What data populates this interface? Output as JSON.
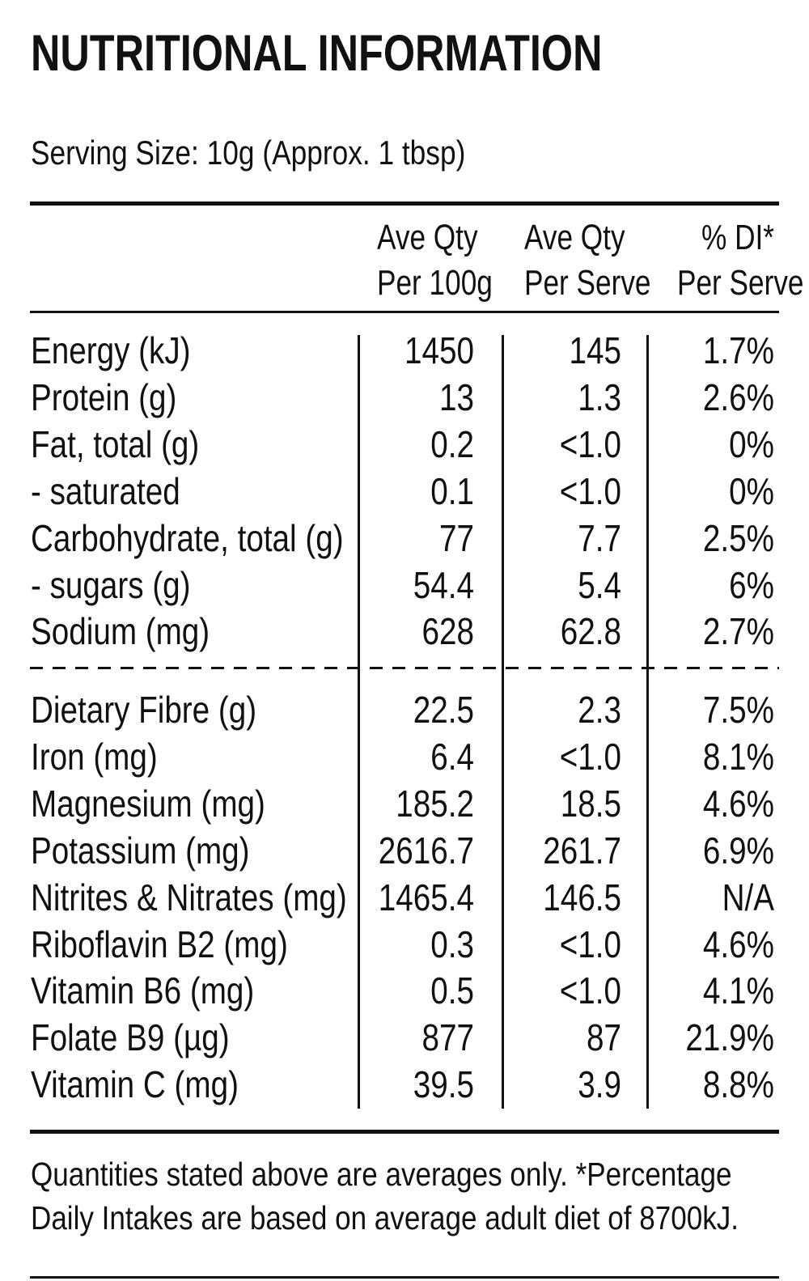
{
  "title": "NUTRITIONAL INFORMATION",
  "serving": "Serving Size: 10g (Approx. 1 tbsp)",
  "headers": [
    {
      "line1": "Ave Qty",
      "line2": "Per 100g"
    },
    {
      "line1": "Ave Qty",
      "line2": "Per Serve"
    },
    {
      "line1": "% DI*",
      "line2": "Per Serve"
    }
  ],
  "rows_main": [
    {
      "name": "Energy (kJ)",
      "per100": "1450",
      "perServe": "145",
      "di": "1.7%"
    },
    {
      "name": "Protein (g)",
      "per100": "13",
      "perServe": "1.3",
      "di": "2.6%"
    },
    {
      "name": "Fat, total (g)",
      "per100": "0.2",
      "perServe": "<1.0",
      "di": "0%"
    },
    {
      "name": "- saturated",
      "per100": "0.1",
      "perServe": "<1.0",
      "di": "0%"
    },
    {
      "name": "Carbohydrate, total (g)",
      "per100": "77",
      "perServe": "7.7",
      "di": "2.5%"
    },
    {
      "name": "- sugars (g)",
      "per100": "54.4",
      "perServe": "5.4",
      "di": "6%"
    },
    {
      "name": "Sodium (mg)",
      "per100": "628",
      "perServe": "62.8",
      "di": "2.7%"
    }
  ],
  "rows_extra": [
    {
      "name": "Dietary Fibre (g)",
      "per100": "22.5",
      "perServe": "2.3",
      "di": "7.5%"
    },
    {
      "name": "Iron (mg)",
      "per100": "6.4",
      "perServe": "<1.0",
      "di": "8.1%"
    },
    {
      "name": "Magnesium (mg)",
      "per100": "185.2",
      "perServe": "18.5",
      "di": "4.6%"
    },
    {
      "name": "Potassium (mg)",
      "per100": "2616.7",
      "perServe": "261.7",
      "di": "6.9%"
    },
    {
      "name": "Nitrites & Nitrates (mg)",
      "per100": "1465.4",
      "perServe": "146.5",
      "di": "N/A"
    },
    {
      "name": "Riboflavin B2 (mg)",
      "per100": "0.3",
      "perServe": "<1.0",
      "di": "4.6%"
    },
    {
      "name": "Vitamin B6 (mg)",
      "per100": "0.5",
      "perServe": "<1.0",
      "di": "4.1%"
    },
    {
      "name": "Folate B9 (µg)",
      "per100": "877",
      "perServe": "87",
      "di": "21.9%"
    },
    {
      "name": "Vitamin C (mg)",
      "per100": "39.5",
      "perServe": "3.9",
      "di": "8.8%"
    }
  ],
  "footer": {
    "line1": "Quantities stated above are averages only. *Percentage",
    "line2": "Daily Intakes are based on average adult diet of 8700kJ."
  }
}
